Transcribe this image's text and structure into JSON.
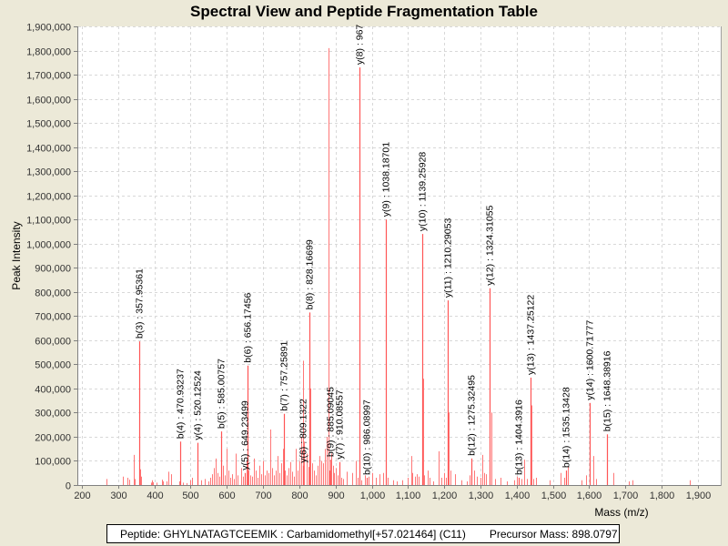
{
  "chart_data": {
    "type": "bar",
    "title": "Spectral View and Peptide Fragmentation Table",
    "xlabel": "Mass (m/z)",
    "ylabel": "Peak Intensity",
    "xlim": [
      195,
      1960
    ],
    "ylim": [
      0,
      1900000
    ],
    "grid": true,
    "bar_color": "#ff5555",
    "x_ticks": [
      "200",
      "300",
      "400",
      "500",
      "600",
      "700",
      "800",
      "900",
      "1,000",
      "1,100",
      "1,200",
      "1,300",
      "1,400",
      "1,500",
      "1,600",
      "1,700",
      "1,800",
      "1,900"
    ],
    "x_tick_values": [
      200,
      300,
      400,
      500,
      600,
      700,
      800,
      900,
      1000,
      1100,
      1200,
      1300,
      1400,
      1500,
      1600,
      1700,
      1800,
      1900
    ],
    "y_ticks": [
      "0",
      "100,000",
      "200,000",
      "300,000",
      "400,000",
      "500,000",
      "600,000",
      "700,000",
      "800,000",
      "900,000",
      "1,000,000",
      "1,100,000",
      "1,200,000",
      "1,300,000",
      "1,400,000",
      "1,500,000",
      "1,600,000",
      "1,700,000",
      "1,800,000",
      "1,900,000"
    ],
    "y_tick_values": [
      0,
      100000,
      200000,
      300000,
      400000,
      500000,
      600000,
      700000,
      800000,
      900000,
      1000000,
      1100000,
      1200000,
      1300000,
      1400000,
      1500000,
      1600000,
      1700000,
      1800000,
      1900000
    ],
    "annotated_peaks": [
      {
        "label": "b(3) : 357.95361",
        "x": 357.95,
        "y": 595000
      },
      {
        "label": "b(4) : 470.93237",
        "x": 470.93,
        "y": 180000
      },
      {
        "label": "y(4) : 520.12524",
        "x": 520.13,
        "y": 175000
      },
      {
        "label": "b(5) : 585.00757",
        "x": 585.01,
        "y": 222000
      },
      {
        "label": "y(5) : 649.23499",
        "x": 649.23,
        "y": 50000
      },
      {
        "label": "b(6) : 656.17456",
        "x": 656.17,
        "y": 495000
      },
      {
        "label": "b(7) : 757.25891",
        "x": 757.26,
        "y": 295000
      },
      {
        "label": "y(6) : 809.1322",
        "x": 809.13,
        "y": 80000
      },
      {
        "label": "b(8) : 828.16699",
        "x": 828.17,
        "y": 715000
      },
      {
        "label": "b(9) : 885.09045",
        "x": 885.09,
        "y": 105000
      },
      {
        "label": "y(7) : 910.08557",
        "x": 910.09,
        "y": 95000
      },
      {
        "label": "y(8) : 967",
        "x": 967.0,
        "y": 1730000
      },
      {
        "label": "b(10) : 986.08997",
        "x": 986.09,
        "y": 30000
      },
      {
        "label": "y(9) : 1038.18701",
        "x": 1038.19,
        "y": 1100000
      },
      {
        "label": "y(10) : 1139.25928",
        "x": 1139.26,
        "y": 1040000
      },
      {
        "label": "y(11) : 1210.29053",
        "x": 1210.29,
        "y": 765000
      },
      {
        "label": "b(12) : 1275.32495",
        "x": 1275.32,
        "y": 110000
      },
      {
        "label": "y(12) : 1324.31055",
        "x": 1324.31,
        "y": 815000
      },
      {
        "label": "b(13) : 1404.3916",
        "x": 1404.39,
        "y": 30000
      },
      {
        "label": "y(13) : 1437.25122",
        "x": 1437.25,
        "y": 445000
      },
      {
        "label": "b(14) : 1535.13428",
        "x": 1535.13,
        "y": 60000
      },
      {
        "label": "y(14) : 1600.71777",
        "x": 1600.72,
        "y": 340000
      },
      {
        "label": "b(15) : 1648.38916",
        "x": 1648.39,
        "y": 210000
      }
    ],
    "other_peaks": [
      [
        268,
        25000
      ],
      [
        312,
        35000
      ],
      [
        325,
        30000
      ],
      [
        330,
        22000
      ],
      [
        342,
        125000
      ],
      [
        345,
        25000
      ],
      [
        360,
        65000
      ],
      [
        363,
        35000
      ],
      [
        390,
        10000
      ],
      [
        393,
        20000
      ],
      [
        396,
        12000
      ],
      [
        405,
        10000
      ],
      [
        420,
        22000
      ],
      [
        424,
        15000
      ],
      [
        433,
        15000
      ],
      [
        438,
        55000
      ],
      [
        445,
        45000
      ],
      [
        468,
        15000
      ],
      [
        480,
        10000
      ],
      [
        490,
        8000
      ],
      [
        500,
        20000
      ],
      [
        505,
        30000
      ],
      [
        530,
        20000
      ],
      [
        540,
        25000
      ],
      [
        548,
        15000
      ],
      [
        555,
        30000
      ],
      [
        560,
        45000
      ],
      [
        565,
        70000
      ],
      [
        570,
        110000
      ],
      [
        575,
        50000
      ],
      [
        580,
        35000
      ],
      [
        590,
        80000
      ],
      [
        595,
        40000
      ],
      [
        600,
        150000
      ],
      [
        605,
        60000
      ],
      [
        610,
        30000
      ],
      [
        615,
        45000
      ],
      [
        620,
        25000
      ],
      [
        625,
        130000
      ],
      [
        630,
        40000
      ],
      [
        640,
        70000
      ],
      [
        645,
        35000
      ],
      [
        655,
        100000
      ],
      [
        660,
        60000
      ],
      [
        665,
        40000
      ],
      [
        670,
        35000
      ],
      [
        675,
        110000
      ],
      [
        680,
        60000
      ],
      [
        685,
        30000
      ],
      [
        690,
        80000
      ],
      [
        695,
        45000
      ],
      [
        700,
        100000
      ],
      [
        705,
        40000
      ],
      [
        710,
        60000
      ],
      [
        715,
        50000
      ],
      [
        720,
        230000
      ],
      [
        725,
        70000
      ],
      [
        730,
        40000
      ],
      [
        735,
        60000
      ],
      [
        740,
        120000
      ],
      [
        745,
        50000
      ],
      [
        750,
        90000
      ],
      [
        755,
        150000
      ],
      [
        760,
        60000
      ],
      [
        765,
        40000
      ],
      [
        770,
        70000
      ],
      [
        775,
        95000
      ],
      [
        780,
        55000
      ],
      [
        785,
        35000
      ],
      [
        790,
        150000
      ],
      [
        795,
        60000
      ],
      [
        800,
        100000
      ],
      [
        805,
        200000
      ],
      [
        810,
        515000
      ],
      [
        813,
        180000
      ],
      [
        820,
        130000
      ],
      [
        825,
        75000
      ],
      [
        830,
        400000
      ],
      [
        835,
        90000
      ],
      [
        840,
        60000
      ],
      [
        845,
        40000
      ],
      [
        850,
        80000
      ],
      [
        855,
        120000
      ],
      [
        860,
        100000
      ],
      [
        865,
        90000
      ],
      [
        870,
        150000
      ],
      [
        875,
        200000
      ],
      [
        880,
        1810000
      ],
      [
        882,
        60000
      ],
      [
        888,
        130000
      ],
      [
        892,
        80000
      ],
      [
        895,
        50000
      ],
      [
        900,
        70000
      ],
      [
        905,
        40000
      ],
      [
        915,
        30000
      ],
      [
        920,
        25000
      ],
      [
        930,
        55000
      ],
      [
        945,
        50000
      ],
      [
        955,
        100000
      ],
      [
        960,
        30000
      ],
      [
        966,
        940000
      ],
      [
        970,
        20000
      ],
      [
        980,
        40000
      ],
      [
        990,
        35000
      ],
      [
        1000,
        50000
      ],
      [
        1010,
        30000
      ],
      [
        1020,
        45000
      ],
      [
        1030,
        50000
      ],
      [
        1040,
        470000
      ],
      [
        1045,
        30000
      ],
      [
        1060,
        20000
      ],
      [
        1070,
        15000
      ],
      [
        1085,
        20000
      ],
      [
        1100,
        30000
      ],
      [
        1108,
        120000
      ],
      [
        1112,
        50000
      ],
      [
        1118,
        35000
      ],
      [
        1125,
        45000
      ],
      [
        1130,
        35000
      ],
      [
        1141,
        440000
      ],
      [
        1145,
        40000
      ],
      [
        1155,
        60000
      ],
      [
        1160,
        30000
      ],
      [
        1170,
        15000
      ],
      [
        1185,
        140000
      ],
      [
        1192,
        30000
      ],
      [
        1200,
        50000
      ],
      [
        1205,
        30000
      ],
      [
        1212,
        300000
      ],
      [
        1218,
        60000
      ],
      [
        1230,
        45000
      ],
      [
        1248,
        20000
      ],
      [
        1262,
        15000
      ],
      [
        1270,
        40000
      ],
      [
        1282,
        60000
      ],
      [
        1290,
        35000
      ],
      [
        1300,
        30000
      ],
      [
        1305,
        125000
      ],
      [
        1310,
        50000
      ],
      [
        1315,
        45000
      ],
      [
        1326,
        510000
      ],
      [
        1330,
        300000
      ],
      [
        1340,
        25000
      ],
      [
        1356,
        30000
      ],
      [
        1372,
        15000
      ],
      [
        1392,
        20000
      ],
      [
        1400,
        35000
      ],
      [
        1412,
        25000
      ],
      [
        1420,
        105000
      ],
      [
        1428,
        25000
      ],
      [
        1440,
        330000
      ],
      [
        1446,
        25000
      ],
      [
        1452,
        30000
      ],
      [
        1490,
        20000
      ],
      [
        1520,
        50000
      ],
      [
        1530,
        30000
      ],
      [
        1540,
        75000
      ],
      [
        1578,
        20000
      ],
      [
        1592,
        40000
      ],
      [
        1602,
        130000
      ],
      [
        1612,
        120000
      ],
      [
        1620,
        25000
      ],
      [
        1650,
        30000
      ],
      [
        1666,
        50000
      ],
      [
        1710,
        15000
      ],
      [
        1720,
        20000
      ],
      [
        1878,
        20000
      ]
    ]
  },
  "footer": {
    "peptide": "Peptide: GHYLNATAGTCEEMIK : Carbamidomethyl[+57.021464] (C11)",
    "precursor": "Precursor Mass: 898.0797"
  }
}
